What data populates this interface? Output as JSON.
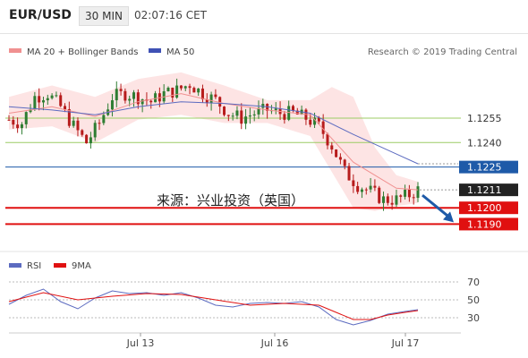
{
  "header": {
    "symbol": "EUR/USD",
    "timeframe": "30 MIN",
    "time": "02:07:16 CET"
  },
  "legend": {
    "bb_label": "MA 20 + Bollinger Bands",
    "ma50_label": "MA 50",
    "credit": "Research © 2019 Trading Central"
  },
  "overlay_text": "来源：兴业投资（英国）",
  "rsi_legend": {
    "rsi_label": "RSI",
    "ma_label": "9MA"
  },
  "colors": {
    "up": "#2e7d32",
    "down": "#b71c1c",
    "bb_fill": "#fde4e4",
    "ma20": "#f09090",
    "ma50": "#5c6bc0",
    "resistance": "#9ccc65",
    "pivot": "#1e5aa8",
    "support": "#e01010",
    "current": "#222222",
    "arrow": "#1e5aa8",
    "rsi": "#5c6bc0",
    "rsi_ma": "#e01010"
  },
  "chart_data": [
    {
      "type": "candlestick",
      "x_ticks": [
        "Jul 13",
        "Jul 16",
        "Jul 17"
      ],
      "y_scale": {
        "min": 1.1182,
        "max": 1.1289
      },
      "levels": [
        {
          "value": 1.1255,
          "label": "1.1255",
          "kind": "resistance"
        },
        {
          "value": 1.124,
          "label": "1.1240",
          "kind": "resistance"
        },
        {
          "value": 1.1225,
          "label": "1.1225",
          "kind": "pivot"
        },
        {
          "value": 1.1211,
          "label": "1.1211",
          "kind": "current"
        },
        {
          "value": 1.12,
          "label": "1.1200",
          "kind": "support"
        },
        {
          "value": 1.119,
          "label": "1.1190",
          "kind": "support"
        }
      ],
      "close_path": [
        [
          0,
          1.1254
        ],
        [
          3,
          1.1252
        ],
        [
          6,
          1.1268
        ],
        [
          9,
          1.127
        ],
        [
          12,
          1.1262
        ],
        [
          15,
          1.125
        ],
        [
          18,
          1.124
        ],
        [
          21,
          1.1252
        ],
        [
          24,
          1.1268
        ],
        [
          27,
          1.127
        ],
        [
          30,
          1.1268
        ],
        [
          33,
          1.1265
        ],
        [
          36,
          1.127
        ],
        [
          39,
          1.1272
        ],
        [
          42,
          1.1276
        ],
        [
          45,
          1.127
        ],
        [
          48,
          1.1266
        ],
        [
          51,
          1.1258
        ],
        [
          54,
          1.1255
        ],
        [
          57,
          1.1258
        ],
        [
          60,
          1.126
        ],
        [
          63,
          1.1258
        ],
        [
          66,
          1.1258
        ],
        [
          69,
          1.1255
        ],
        [
          72,
          1.125
        ],
        [
          75,
          1.1238
        ],
        [
          78,
          1.1222
        ],
        [
          81,
          1.1214
        ],
        [
          84,
          1.121
        ],
        [
          87,
          1.1205
        ],
        [
          90,
          1.1205
        ],
        [
          93,
          1.1208
        ],
        [
          95,
          1.1211
        ]
      ],
      "ma50_path": [
        [
          0,
          1.1262
        ],
        [
          10,
          1.126
        ],
        [
          20,
          1.1257
        ],
        [
          30,
          1.1262
        ],
        [
          40,
          1.1265
        ],
        [
          50,
          1.1264
        ],
        [
          60,
          1.1262
        ],
        [
          70,
          1.1258
        ],
        [
          80,
          1.1245
        ],
        [
          90,
          1.1233
        ],
        [
          95,
          1.1227
        ]
      ],
      "ma20_path": [
        [
          0,
          1.1258
        ],
        [
          10,
          1.1262
        ],
        [
          20,
          1.1256
        ],
        [
          30,
          1.1265
        ],
        [
          40,
          1.127
        ],
        [
          50,
          1.1264
        ],
        [
          60,
          1.126
        ],
        [
          70,
          1.1257
        ],
        [
          80,
          1.1228
        ],
        [
          90,
          1.1212
        ],
        [
          95,
          1.1211
        ]
      ],
      "bb_upper": [
        [
          0,
          1.1268
        ],
        [
          10,
          1.1275
        ],
        [
          20,
          1.1268
        ],
        [
          30,
          1.1279
        ],
        [
          40,
          1.1283
        ],
        [
          50,
          1.1275
        ],
        [
          60,
          1.1266
        ],
        [
          70,
          1.1266
        ],
        [
          75,
          1.1274
        ],
        [
          80,
          1.1268
        ],
        [
          85,
          1.1237
        ],
        [
          90,
          1.122
        ],
        [
          95,
          1.1216
        ]
      ],
      "bb_lower": [
        [
          0,
          1.1248
        ],
        [
          10,
          1.125
        ],
        [
          20,
          1.124
        ],
        [
          30,
          1.1254
        ],
        [
          40,
          1.1257
        ],
        [
          50,
          1.1252
        ],
        [
          60,
          1.1252
        ],
        [
          70,
          1.1244
        ],
        [
          75,
          1.1222
        ],
        [
          80,
          1.12
        ],
        [
          85,
          1.1198
        ],
        [
          90,
          1.1201
        ],
        [
          95,
          1.1203
        ]
      ]
    },
    {
      "type": "line",
      "y_scale": {
        "min": 15,
        "max": 80
      },
      "y_ticks": [
        70,
        50,
        30
      ],
      "series": [
        {
          "name": "RSI",
          "path": [
            [
              0,
              45
            ],
            [
              4,
              55
            ],
            [
              8,
              62
            ],
            [
              12,
              48
            ],
            [
              16,
              40
            ],
            [
              20,
              52
            ],
            [
              24,
              60
            ],
            [
              28,
              57
            ],
            [
              32,
              58
            ],
            [
              36,
              55
            ],
            [
              40,
              58
            ],
            [
              44,
              52
            ],
            [
              48,
              44
            ],
            [
              52,
              42
            ],
            [
              56,
              46
            ],
            [
              60,
              47
            ],
            [
              64,
              46
            ],
            [
              68,
              48
            ],
            [
              72,
              42
            ],
            [
              76,
              28
            ],
            [
              80,
              22
            ],
            [
              84,
              27
            ],
            [
              88,
              34
            ],
            [
              92,
              37
            ],
            [
              95,
              39
            ]
          ]
        },
        {
          "name": "9MA",
          "path": [
            [
              0,
              48
            ],
            [
              8,
              58
            ],
            [
              16,
              50
            ],
            [
              24,
              54
            ],
            [
              32,
              57
            ],
            [
              40,
              56
            ],
            [
              48,
              50
            ],
            [
              56,
              44
            ],
            [
              64,
              46
            ],
            [
              72,
              44
            ],
            [
              76,
              36
            ],
            [
              80,
              28
            ],
            [
              84,
              28
            ],
            [
              88,
              33
            ],
            [
              92,
              36
            ],
            [
              95,
              38
            ]
          ]
        }
      ]
    }
  ]
}
